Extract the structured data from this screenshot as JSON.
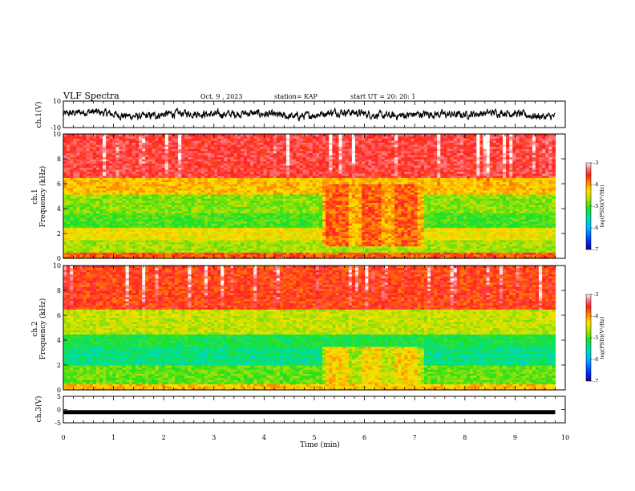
{
  "header": {
    "title": "VLF Spectra",
    "date": "Oct. 9 , 2023",
    "station": "station= KAP",
    "start": "start UT = 20: 20: 1"
  },
  "colors": {
    "spectrum_scale": [
      "#1a0090",
      "#0030ff",
      "#00b4ff",
      "#00e0a0",
      "#20e020",
      "#c8e000",
      "#ffe000",
      "#ff9000",
      "#ff2020",
      "#ff8080",
      "#ffffff"
    ],
    "waveform": "#000000"
  },
  "chart_data": [
    {
      "id": "ch1-waveform",
      "type": "line",
      "ylabel": "ch.1(V)",
      "ylim": [
        -10,
        10
      ],
      "yticks": [
        10,
        -10
      ],
      "xlim": [
        0,
        10
      ],
      "note_series": "noisy waveform, amplitude about ±4 V, continuous from 0 to 9.8 min"
    },
    {
      "id": "ch1-spectrogram",
      "type": "heatmap",
      "ylabel": "ch.1\nFrequency (kHz)",
      "ylabel_lines": [
        "ch.1",
        "Frequency (kHz)"
      ],
      "ylim": [
        0,
        10
      ],
      "yticks": [
        0,
        2,
        4,
        6,
        8,
        10
      ],
      "xlim": [
        0,
        10
      ],
      "data_end_min": 9.8,
      "colorbar": {
        "label": "log(PSD)(V²/Hz)",
        "ticks": [
          -3,
          -4,
          -5,
          -6,
          -7
        ],
        "range": [
          -7,
          -3
        ]
      },
      "background_levels_by_freq": [
        {
          "f": [
            0,
            0.5
          ],
          "level": -3.8
        },
        {
          "f": [
            0.5,
            1.5
          ],
          "level": -4.7
        },
        {
          "f": [
            1.5,
            2.5
          ],
          "level": -4.4
        },
        {
          "f": [
            2.5,
            3.7
          ],
          "level": -5.0
        },
        {
          "f": [
            3.7,
            5.2
          ],
          "level": -4.8
        },
        {
          "f": [
            5.2,
            6.5
          ],
          "level": -4.2
        },
        {
          "f": [
            6.5,
            10
          ],
          "level": -3.5
        }
      ],
      "enhancement": {
        "t": [
          5.1,
          7.15
        ],
        "f": [
          1.0,
          6.0
        ],
        "level": -3.8
      }
    },
    {
      "id": "ch2-spectrogram",
      "type": "heatmap",
      "ylabel_lines": [
        "ch.2",
        "Frequency (kHz)"
      ],
      "ylim": [
        0,
        10
      ],
      "yticks": [
        0,
        2,
        4,
        6,
        8,
        10
      ],
      "xlim": [
        0,
        10
      ],
      "data_end_min": 9.8,
      "colorbar": {
        "label": "log(PSD)(V²/Hz)",
        "ticks": [
          -3,
          -4,
          -5,
          -6,
          -7
        ],
        "range": [
          -7,
          -3
        ]
      },
      "background_levels_by_freq": [
        {
          "f": [
            0,
            0.5
          ],
          "level": -4.2
        },
        {
          "f": [
            0.5,
            2.0
          ],
          "level": -4.9
        },
        {
          "f": [
            2.0,
            3.5
          ],
          "level": -5.4
        },
        {
          "f": [
            3.5,
            4.5
          ],
          "level": -5.2
        },
        {
          "f": [
            4.5,
            6.5
          ],
          "level": -4.6
        },
        {
          "f": [
            6.5,
            10
          ],
          "level": -3.7
        }
      ],
      "enhancement": {
        "t": [
          5.1,
          7.15
        ],
        "f": [
          0.5,
          3.5
        ],
        "level": -4.3
      }
    },
    {
      "id": "ch3-waveform",
      "type": "line",
      "ylabel": "ch.3(V)",
      "ylim": [
        -5,
        5
      ],
      "yticks": [
        5,
        0,
        -5
      ],
      "xlim": [
        0,
        10
      ],
      "note_series": "flat thick trace near -1 V"
    }
  ],
  "xaxis": {
    "label": "Time (min)",
    "ticks": [
      0,
      1,
      2,
      3,
      4,
      5,
      6,
      7,
      8,
      9,
      10
    ]
  }
}
